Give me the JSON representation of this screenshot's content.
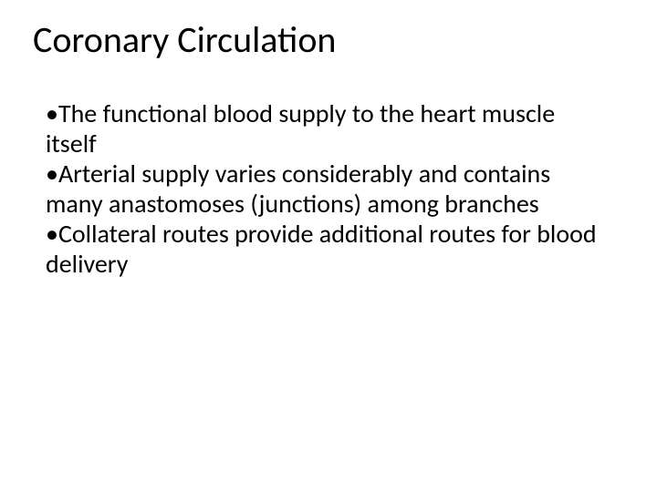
{
  "slide": {
    "title": "Coronary Circulation",
    "bullets": [
      "The functional blood supply to the heart muscle itself",
      "Arterial supply varies considerably and contains many anastomoses (junctions) among branches",
      "Collateral routes provide additional routes for blood delivery"
    ],
    "bullet_char": "•"
  },
  "style": {
    "background_color": "#ffffff",
    "text_color": "#000000",
    "title_fontsize": 40,
    "body_fontsize": 28,
    "font_family": "Calibri"
  }
}
